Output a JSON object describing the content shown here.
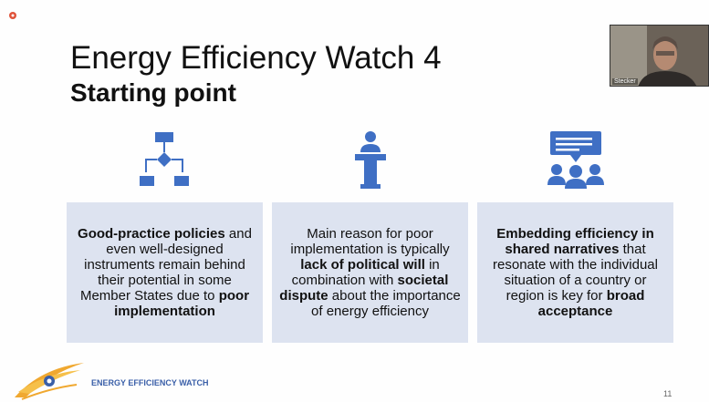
{
  "slide": {
    "title": "Energy Efficiency Watch 4",
    "subtitle": "Starting point",
    "boxes": [
      {
        "segments": [
          {
            "text": "Good-practice policies",
            "bold": true
          },
          {
            "text": " and even well-designed instruments remain behind their potential in some Member States due to ",
            "bold": false
          },
          {
            "text": "poor implementation",
            "bold": true
          }
        ]
      },
      {
        "segments": [
          {
            "text": "Main reason for poor implementation is typically ",
            "bold": false
          },
          {
            "text": "lack of political will",
            "bold": true
          },
          {
            "text": " in combination with ",
            "bold": false
          },
          {
            "text": "societal dispute",
            "bold": true
          },
          {
            "text": " about the importance of energy efficiency",
            "bold": false
          }
        ]
      },
      {
        "segments": [
          {
            "text": "Embedding efficiency in shared narratives",
            "bold": true
          },
          {
            "text": " that resonate with the individual situation of a country or region is key for ",
            "bold": false
          },
          {
            "text": "broad acceptance",
            "bold": true
          }
        ]
      }
    ],
    "logo_text": "ENERGY EFFICIENCY WATCH",
    "page_number": "11"
  },
  "video": {
    "participant": "Stecker"
  }
}
